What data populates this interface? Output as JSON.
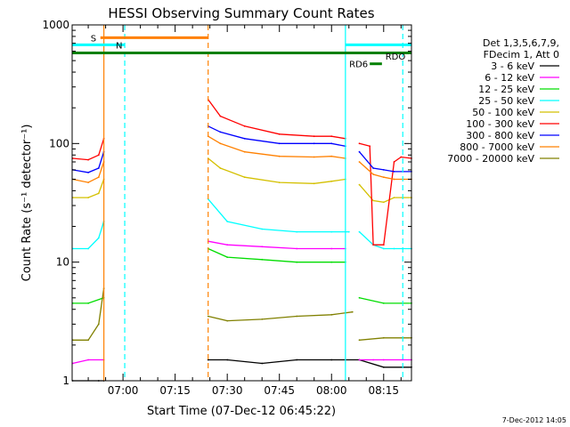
{
  "chart_data": {
    "type": "line",
    "title": "HESSI Observing Summary Count Rates",
    "xlabel": "Start Time (07-Dec-12 06:45:22)",
    "ylabel": "Count Rate (s⁻¹ detector⁻¹)",
    "y_scale": "log",
    "ylim": [
      1,
      1000
    ],
    "xlim": [
      "06:45:22",
      "08:23:00"
    ],
    "x_ticks": [
      "07:00",
      "07:15",
      "07:30",
      "07:45",
      "08:00",
      "08:15"
    ],
    "y_ticks": [
      "1",
      "10",
      "100",
      "1000"
    ],
    "legend_position": "right",
    "legend_header": [
      "Det 1,3,5,6,7,9,",
      "FDecim 1, Att 0"
    ],
    "timestamp": "7-Dec-2012 14:05",
    "gaps": [
      [
        "06:54:30",
        "07:24:30"
      ],
      [
        "08:05:00",
        "08:07:30"
      ]
    ],
    "series": [
      {
        "name": "3 - 6 keV",
        "color": "#000000",
        "x": [
          "06:45:30",
          "06:53:00",
          "06:54:30",
          "07:24:30",
          "07:30",
          "07:40",
          "07:50",
          "08:00",
          "08:08",
          "08:15",
          "08:23"
        ],
        "values": [
          1.0,
          1.0,
          1.0,
          1.5,
          1.5,
          1.4,
          1.5,
          1.5,
          1.5,
          1.3,
          1.3
        ]
      },
      {
        "name": "6 - 12 keV",
        "color": "#ff00ff",
        "x": [
          "06:45:30",
          "06:50:00",
          "06:54:30",
          "07:24:30",
          "07:30",
          "07:40",
          "07:50",
          "08:00",
          "08:04",
          "08:08",
          "08:12",
          "08:15",
          "08:23"
        ],
        "values": [
          1.4,
          1.5,
          1.5,
          15,
          14,
          13.5,
          13,
          13,
          13,
          1.5,
          1.5,
          1.5,
          1.5
        ]
      },
      {
        "name": "12 - 25 keV",
        "color": "#00dd00",
        "x": [
          "06:45:30",
          "06:50:00",
          "06:54:30",
          "07:24:30",
          "07:30",
          "07:40",
          "07:50",
          "08:00",
          "08:04",
          "08:08",
          "08:15",
          "08:23"
        ],
        "values": [
          4.5,
          4.5,
          5,
          13,
          11,
          10.5,
          10,
          10,
          10,
          5,
          4.5,
          4.5
        ]
      },
      {
        "name": "25 - 50 keV",
        "color": "#00ffff",
        "x": [
          "06:45:30",
          "06:50:00",
          "06:53:00",
          "06:54:30",
          "07:24:30",
          "07:30",
          "07:40",
          "07:50",
          "08:00",
          "08:05",
          "08:08",
          "08:12",
          "08:15",
          "08:18",
          "08:23"
        ],
        "values": [
          13,
          13,
          16,
          22,
          34,
          22,
          19,
          18,
          18,
          18,
          18,
          14,
          13,
          13,
          13
        ]
      },
      {
        "name": "50 - 100 keV",
        "color": "#d4c000",
        "x": [
          "06:45:30",
          "06:50:00",
          "06:53:00",
          "06:54:30",
          "07:24:30",
          "07:28",
          "07:35",
          "07:45",
          "07:55",
          "08:00",
          "08:04",
          "08:08",
          "08:12",
          "08:15",
          "08:18",
          "08:23"
        ],
        "values": [
          35,
          35,
          38,
          50,
          75,
          62,
          52,
          47,
          46,
          48,
          50,
          45,
          33,
          32,
          35,
          35
        ]
      },
      {
        "name": "100 - 300 keV",
        "color": "#ff0000",
        "x": [
          "06:45:30",
          "06:50:00",
          "06:53:00",
          "06:54:30",
          "07:24:30",
          "07:28",
          "07:35",
          "07:45",
          "07:55",
          "08:00",
          "08:04",
          "08:08",
          "08:11",
          "08:12",
          "08:15",
          "08:18",
          "08:20",
          "08:23"
        ],
        "values": [
          75,
          73,
          80,
          110,
          235,
          170,
          140,
          120,
          115,
          115,
          110,
          100,
          95,
          14,
          14,
          70,
          77,
          75
        ]
      },
      {
        "name": "300 - 800 keV",
        "color": "#0000ff",
        "x": [
          "06:45:30",
          "06:50:00",
          "06:53:00",
          "06:54:30",
          "07:24:30",
          "07:28",
          "07:35",
          "07:45",
          "07:55",
          "08:00",
          "08:04",
          "08:08",
          "08:12",
          "08:15",
          "08:18",
          "08:23"
        ],
        "values": [
          60,
          57,
          62,
          85,
          140,
          125,
          110,
          100,
          100,
          100,
          95,
          85,
          62,
          60,
          58,
          58
        ]
      },
      {
        "name": "800 - 7000 keV",
        "color": "#ff8000",
        "x": [
          "06:45:30",
          "06:50:00",
          "06:53:00",
          "06:54:30",
          "07:24:30",
          "07:28",
          "07:35",
          "07:45",
          "07:55",
          "08:00",
          "08:04",
          "08:08",
          "08:12",
          "08:15",
          "08:18",
          "08:23"
        ],
        "values": [
          50,
          47,
          52,
          70,
          115,
          100,
          85,
          78,
          77,
          78,
          75,
          70,
          55,
          52,
          50,
          50
        ]
      },
      {
        "name": "7000 - 20000 keV",
        "color": "#808000",
        "x": [
          "06:45:30",
          "06:50:00",
          "06:53:00",
          "06:54:30",
          "07:24:30",
          "07:30",
          "07:40",
          "07:50",
          "08:00",
          "08:06",
          "08:08",
          "08:15",
          "08:23"
        ],
        "values": [
          2.2,
          2.2,
          3,
          6,
          3.5,
          3.2,
          3.3,
          3.5,
          3.6,
          3.8,
          2.2,
          2.3,
          2.3
        ]
      }
    ],
    "flag_bars": [
      {
        "label": "S",
        "color": "#ff8000",
        "y_value": 780,
        "start": "06:53:30",
        "end": "07:24:30"
      },
      {
        "label": "N",
        "color": "#00ffff",
        "y_value": 680,
        "start": "06:45:22",
        "end": "07:00:30"
      },
      {
        "label": "",
        "color": "#00ffff",
        "y_value": 680,
        "start": "08:04:00",
        "end": "08:23:00"
      },
      {
        "label": "",
        "color": "#008000",
        "y_value": 580,
        "start": "06:45:22",
        "end": "08:23:00"
      },
      {
        "label": "RD6",
        "color": "#008000",
        "y_value": 470,
        "start": "08:11:00",
        "end": "08:14:30"
      },
      {
        "label": "RDO",
        "color": "#008000",
        "y_value": 545,
        "start": "",
        "end": ""
      }
    ],
    "vertical_markers": [
      {
        "time": "06:54:30",
        "color": "#ff8000",
        "style": "solid"
      },
      {
        "time": "07:00:30",
        "color": "#00ffff",
        "style": "dashed"
      },
      {
        "time": "07:24:30",
        "color": "#ff8000",
        "style": "dashed"
      },
      {
        "time": "08:04:00",
        "color": "#00ffff",
        "style": "solid"
      },
      {
        "time": "08:20:30",
        "color": "#00ffff",
        "style": "dashed"
      }
    ]
  }
}
